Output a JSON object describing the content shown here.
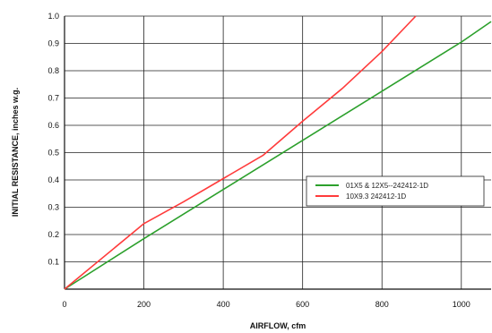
{
  "chart_data": {
    "type": "line",
    "xlabel": "AIRFLOW, cfm",
    "ylabel": "INITIAL RESISTANCE, inches w.g.",
    "xlim": [
      0,
      1075
    ],
    "ylim": [
      0,
      1.0
    ],
    "x_ticks": [
      0,
      200,
      400,
      600,
      800,
      1000
    ],
    "x_tick_labels": [
      "0",
      "200",
      "400",
      "600",
      "800",
      "1000"
    ],
    "y_ticks": [
      0.1,
      0.2,
      0.3,
      0.4,
      0.5,
      0.6,
      0.7,
      0.8,
      0.9,
      1.0
    ],
    "y_tick_labels": [
      "0.1",
      "0.2",
      "0.3",
      "0.4",
      "0.5",
      "0.6",
      "0.7",
      "0.8",
      "0.9",
      "1.0"
    ],
    "grid": true,
    "legend_position": "right",
    "series": [
      {
        "name": "01X5 & 12X5--242412-1D",
        "color": "#2ca02c",
        "x": [
          0,
          200,
          400,
          600,
          800,
          1000,
          1075
        ],
        "y": [
          0,
          0.185,
          0.365,
          0.545,
          0.725,
          0.905,
          0.98
        ]
      },
      {
        "name": "10X9.3 242412-1D",
        "color": "#ff3b3b",
        "x": [
          0,
          200,
          300,
          400,
          500,
          600,
          700,
          800,
          885
        ],
        "y": [
          0,
          0.24,
          0.32,
          0.405,
          0.49,
          0.615,
          0.735,
          0.87,
          1.0
        ]
      }
    ]
  }
}
